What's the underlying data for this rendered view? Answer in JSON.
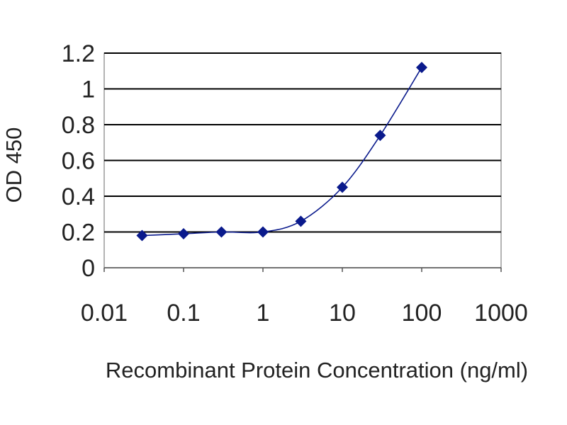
{
  "chart_data": {
    "type": "scatter",
    "xlabel": "Recombinant Protein Concentration (ng/ml)",
    "ylabel": "OD 450",
    "xscale": "log",
    "xlim": [
      0.01,
      1000
    ],
    "ylim": [
      0,
      1.2
    ],
    "x_ticks": [
      0.01,
      0.1,
      1,
      10,
      100,
      1000
    ],
    "x_tick_labels": [
      "0.01",
      "0.1",
      "1",
      "10",
      "100",
      "1000"
    ],
    "y_ticks": [
      0,
      0.2,
      0.4,
      0.6,
      0.8,
      1,
      1.2
    ],
    "y_tick_labels": [
      "0",
      "0.2",
      "0.4",
      "0.6",
      "0.8",
      "1",
      "1.2"
    ],
    "grid": "horizontal",
    "legend": "none",
    "series": [
      {
        "x": [
          0.03,
          0.1,
          0.3,
          1,
          3,
          10,
          30,
          100
        ],
        "y": [
          0.18,
          0.19,
          0.2,
          0.2,
          0.26,
          0.45,
          0.74,
          1.12
        ],
        "marker": "diamond",
        "line": "smooth"
      }
    ],
    "colors": {
      "series": "#0a1a8c",
      "grid": "#000000",
      "frame": "#9a9a9a"
    }
  }
}
